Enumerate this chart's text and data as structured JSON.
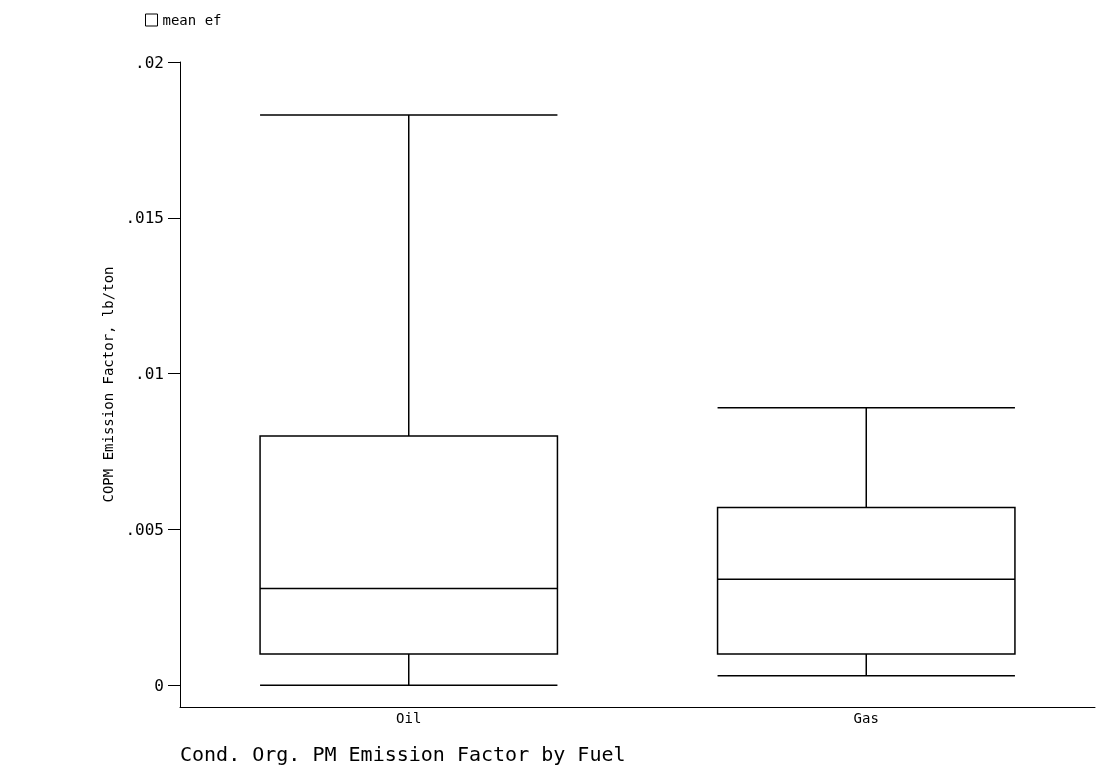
{
  "chart_data": {
    "type": "box",
    "title": "Cond. Org. PM Emission Factor by Fuel",
    "ylabel": "COPM Emission Factor, lb/ton",
    "categories": [
      "Oil",
      "Gas"
    ],
    "series": [
      {
        "name": "mean ef",
        "color": "#000000",
        "boxes": [
          {
            "low": 0,
            "q1": 0.001,
            "median": 0.0031,
            "q3": 0.008,
            "high": 0.0183
          },
          {
            "low": 0.0003,
            "q1": 0.001,
            "median": 0.0034,
            "q3": 0.0057,
            "high": 0.0089
          }
        ]
      }
    ],
    "ylim": [
      -0.0007,
      0.02
    ],
    "yticks": [
      {
        "value": 0,
        "label": "0"
      },
      {
        "value": 0.005,
        "label": ".005"
      },
      {
        "value": 0.01,
        "label": ".01"
      },
      {
        "value": 0.015,
        "label": ".015"
      },
      {
        "value": 0.02,
        "label": ".02"
      }
    ],
    "grid": false,
    "legend": "top left"
  }
}
